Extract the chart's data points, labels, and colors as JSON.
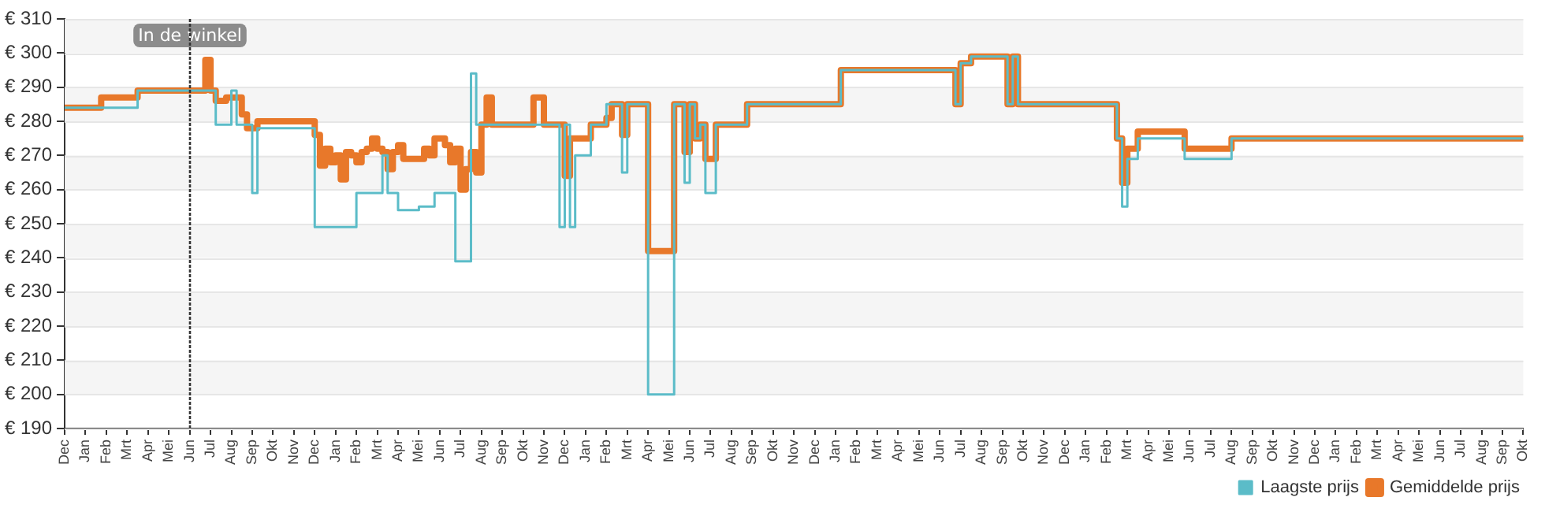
{
  "chart_data": {
    "type": "step",
    "categories": [
      "Dec",
      null,
      null,
      null,
      "Jan",
      null,
      null,
      null,
      "Feb",
      null,
      null,
      null,
      "Mrt",
      null,
      null,
      null,
      "Apr",
      null,
      null,
      null,
      "Mei",
      null,
      null,
      null,
      "Jun",
      null,
      null,
      null,
      "Jul",
      null,
      null,
      null,
      "Aug",
      null,
      null,
      null,
      "Sep",
      null,
      null,
      null,
      "Okt",
      null,
      null,
      null,
      "Nov",
      null,
      null,
      null,
      "Dec",
      null,
      null,
      null,
      "Jan",
      null,
      null,
      null,
      "Feb",
      null,
      null,
      null,
      "Mrt",
      null,
      null,
      null,
      "Apr",
      null,
      null,
      null,
      "Mei",
      null,
      null,
      null,
      "Jun",
      null,
      null,
      null,
      "Jul",
      null,
      null,
      null,
      "Aug",
      null,
      null,
      null,
      "Sep",
      null,
      null,
      null,
      "Okt",
      null,
      null,
      null,
      "Nov",
      null,
      null,
      null,
      "Dec",
      null,
      null,
      null,
      "Jan",
      null,
      null,
      null,
      "Feb",
      null,
      null,
      null,
      "Mrt",
      null,
      null,
      null,
      "Apr",
      null,
      null,
      null,
      "Mei",
      null,
      null,
      null,
      "Jun",
      null,
      null,
      null,
      "Jul",
      null,
      null,
      null,
      "Aug",
      null,
      null,
      null,
      "Sep",
      null,
      null,
      null,
      "Okt",
      null,
      null,
      null,
      "Nov",
      null,
      null,
      null,
      "Dec",
      null,
      null,
      null,
      "Jan",
      null,
      null,
      null,
      "Feb",
      null,
      null,
      null,
      "Mrt",
      null,
      null,
      null,
      "Apr",
      null,
      null,
      null,
      "Mei",
      null,
      null,
      null,
      "Jun",
      null,
      null,
      null,
      "Jul",
      null,
      null,
      null,
      "Aug",
      null,
      null,
      null,
      "Sep",
      null,
      null,
      null,
      "Okt",
      null,
      null,
      null,
      "Nov",
      null,
      null,
      null,
      "Dec",
      null,
      null,
      null,
      "Jan",
      null,
      null,
      null,
      "Feb",
      null,
      null,
      null,
      "Mrt",
      null,
      null,
      null,
      "Apr",
      null,
      null,
      null,
      "Mei",
      null,
      null,
      null,
      "Jun",
      null,
      null,
      null,
      "Jul",
      null,
      null,
      null,
      "Aug",
      null,
      null,
      null,
      "Sep",
      null,
      null,
      null,
      "Okt",
      null,
      null,
      null,
      "Nov",
      null,
      null,
      null,
      "Dec",
      null,
      null,
      null,
      "Jan",
      null,
      null,
      null,
      "Feb",
      null,
      null,
      null,
      "Mrt",
      null,
      null,
      null,
      "Apr",
      null,
      null,
      null,
      "Mei",
      null,
      null,
      null,
      "Jun",
      null,
      null,
      null,
      "Jul",
      null,
      null,
      null,
      "Aug",
      null,
      null,
      null,
      "Sep",
      null,
      null,
      null,
      "Okt"
    ],
    "ylim": [
      190,
      310
    ],
    "yticks": [
      {
        "value": 190,
        "label": "€ 190"
      },
      {
        "value": 200,
        "label": "€ 200"
      },
      {
        "value": 210,
        "label": "€ 210"
      },
      {
        "value": 220,
        "label": "€ 220"
      },
      {
        "value": 230,
        "label": "€ 230"
      },
      {
        "value": 240,
        "label": "€ 240"
      },
      {
        "value": 250,
        "label": "€ 250"
      },
      {
        "value": 260,
        "label": "€ 260"
      },
      {
        "value": 270,
        "label": "€ 270"
      },
      {
        "value": 280,
        "label": "€ 280"
      },
      {
        "value": 290,
        "label": "€ 290"
      },
      {
        "value": 300,
        "label": "€ 300"
      },
      {
        "value": 310,
        "label": "€ 310"
      }
    ],
    "grid": "y",
    "legend": "bottom right",
    "ref_lines": [
      {
        "axis": "x",
        "value": "Jun",
        "label": "In de winkel",
        "color": "#333333",
        "line_style": "dotted"
      }
    ],
    "series": [
      {
        "name": "Gemiddelde prijs",
        "color": "#e8782a",
        "values": [
          284,
          284,
          284,
          284,
          284,
          284,
          284,
          287,
          287,
          287,
          287,
          287,
          287,
          287,
          289,
          289,
          289,
          289,
          289,
          289,
          289,
          289,
          289,
          289,
          289,
          289,
          289,
          298,
          289,
          286,
          286,
          287,
          287,
          287,
          282,
          278,
          278,
          280,
          280,
          280,
          280,
          280,
          280,
          280,
          280,
          280,
          280,
          280,
          276,
          267,
          272,
          268,
          270,
          263,
          271,
          270,
          268,
          271,
          272,
          275,
          272,
          271,
          266,
          271,
          273,
          269,
          269,
          269,
          269,
          272,
          270,
          275,
          275,
          273,
          268,
          272,
          260,
          266,
          271,
          265,
          279,
          287,
          279,
          279,
          279,
          279,
          279,
          279,
          279,
          279,
          287,
          287,
          279,
          279,
          279,
          279,
          264,
          275,
          275,
          275,
          275,
          279,
          279,
          279,
          281,
          285,
          285,
          276,
          285,
          285,
          285,
          285,
          242,
          242,
          242,
          242,
          242,
          285,
          285,
          271,
          285,
          275,
          279,
          269,
          269,
          279,
          279,
          279,
          279,
          279,
          279,
          285,
          285,
          285,
          285,
          285,
          285,
          285,
          285,
          285,
          285,
          285,
          285,
          285,
          285,
          285,
          285,
          285,
          285,
          295,
          295,
          295,
          295,
          295,
          295,
          295,
          295,
          295,
          295,
          295,
          295,
          295,
          295,
          295,
          295,
          295,
          295,
          295,
          295,
          295,
          295,
          285,
          297,
          297,
          299,
          299,
          299,
          299,
          299,
          299,
          299,
          285,
          299,
          285,
          285,
          285,
          285,
          285,
          285,
          285,
          285,
          285,
          285,
          285,
          285,
          285,
          285,
          285,
          285,
          285,
          285,
          285,
          275,
          262,
          272,
          272,
          277,
          277,
          277,
          277,
          277,
          277,
          277,
          277,
          277,
          272,
          272,
          272,
          272,
          272,
          272,
          272,
          272,
          272,
          275,
          275,
          275,
          275,
          275,
          275,
          275,
          275,
          275,
          275,
          275,
          275,
          275,
          275,
          275,
          275,
          275,
          275,
          275,
          275,
          275,
          275,
          275,
          275,
          275,
          275,
          275,
          275,
          275,
          275,
          275,
          275,
          275,
          275,
          275,
          275,
          275,
          275,
          275,
          275,
          275,
          275,
          275,
          275,
          275,
          275,
          275,
          275,
          275,
          275,
          275,
          275,
          275,
          275,
          275,
          275,
          275
        ]
      },
      {
        "name": "Laagste prijs",
        "color": "#5bbcc8",
        "values": [
          284,
          284,
          284,
          284,
          284,
          284,
          284,
          284,
          284,
          284,
          284,
          284,
          284,
          284,
          289,
          289,
          289,
          289,
          289,
          289,
          289,
          289,
          289,
          289,
          289,
          289,
          289,
          289,
          289,
          279,
          279,
          279,
          289,
          279,
          279,
          279,
          259,
          278,
          278,
          278,
          278,
          278,
          278,
          278,
          278,
          278,
          278,
          278,
          249,
          249,
          249,
          249,
          249,
          249,
          249,
          249,
          259,
          259,
          259,
          259,
          259,
          270,
          259,
          259,
          254,
          254,
          254,
          254,
          255,
          255,
          255,
          259,
          259,
          259,
          259,
          239,
          239,
          239,
          294,
          279,
          279,
          279,
          279,
          279,
          279,
          279,
          279,
          279,
          279,
          279,
          279,
          279,
          279,
          279,
          279,
          249,
          279,
          249,
          270,
          270,
          270,
          279,
          279,
          279,
          285,
          285,
          285,
          265,
          285,
          285,
          285,
          285,
          200,
          200,
          200,
          200,
          200,
          285,
          285,
          262,
          285,
          275,
          279,
          259,
          259,
          279,
          279,
          279,
          279,
          279,
          279,
          285,
          285,
          285,
          285,
          285,
          285,
          285,
          285,
          285,
          285,
          285,
          285,
          285,
          285,
          285,
          285,
          285,
          285,
          295,
          295,
          295,
          295,
          295,
          295,
          295,
          295,
          295,
          295,
          295,
          295,
          295,
          295,
          295,
          295,
          295,
          295,
          295,
          295,
          295,
          295,
          285,
          297,
          297,
          299,
          299,
          299,
          299,
          299,
          299,
          299,
          285,
          299,
          285,
          285,
          285,
          285,
          285,
          285,
          285,
          285,
          285,
          285,
          285,
          285,
          285,
          285,
          285,
          285,
          285,
          285,
          285,
          275,
          255,
          269,
          269,
          275,
          275,
          275,
          275,
          275,
          275,
          275,
          275,
          275,
          269,
          269,
          269,
          269,
          269,
          269,
          269,
          269,
          269,
          275,
          275,
          275,
          275,
          275,
          275,
          275,
          275,
          275,
          275,
          275,
          275,
          275,
          275,
          275,
          275,
          275,
          275,
          275,
          275,
          275,
          275,
          275,
          275,
          275,
          275,
          275,
          275,
          275,
          275,
          275,
          275,
          275,
          275,
          275,
          275,
          275,
          275,
          275,
          275,
          275,
          275,
          275,
          275,
          275,
          275,
          275,
          275,
          275,
          275,
          275,
          275,
          275,
          275,
          275,
          275,
          275
        ]
      }
    ]
  }
}
